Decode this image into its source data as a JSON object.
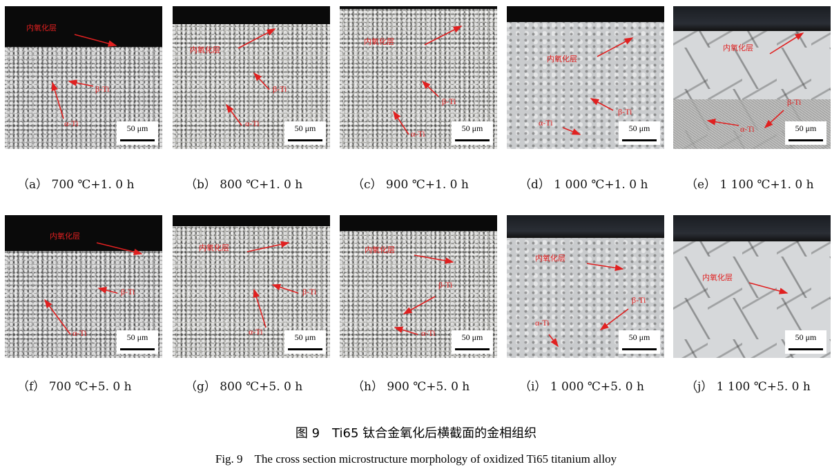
{
  "figure": {
    "title_cn": "图 9　Ti65 钛合金氧化后横截面的金相组织",
    "title_en": "Fig. 9　The cross section microstructure morphology of oxidized Ti65 titanium alloy",
    "annotation_color": "#e02020",
    "panels": [
      {
        "id": "a",
        "caption": "（a）  700 ℃+1. 0 h",
        "labels": {
          "oxide": "内氧化层",
          "beta": "β-Ti",
          "alpha": "α-Ti"
        },
        "scale": "50 μm"
      },
      {
        "id": "b",
        "caption": "（b）  800 ℃+1. 0 h",
        "labels": {
          "oxide": "内氧化层",
          "beta": "β-Ti",
          "alpha": "α-Ti"
        },
        "scale": "50 μm"
      },
      {
        "id": "c",
        "caption": "（c）  900 ℃+1. 0 h",
        "labels": {
          "oxide": "内氧化层",
          "beta": "β-Ti",
          "alpha": "α-Ti"
        },
        "scale": "50 μm"
      },
      {
        "id": "d",
        "caption": "（d）  1 000 ℃+1. 0 h",
        "labels": {
          "oxide": "内氧化层",
          "beta": "β-Ti",
          "alpha": "α-Ti"
        },
        "scale": "50 μm"
      },
      {
        "id": "e",
        "caption": "（e）  1 100 ℃+1. 0 h",
        "labels": {
          "oxide": "内氧化层",
          "beta": "β-Ti",
          "alpha": "α-Ti"
        },
        "scale": "50 μm"
      },
      {
        "id": "f",
        "caption": "（f）  700 ℃+5. 0 h",
        "labels": {
          "oxide": "内氧化层",
          "beta": "β-Ti",
          "alpha": "α-Ti"
        },
        "scale": "50 μm"
      },
      {
        "id": "g",
        "caption": "（g）  800 ℃+5. 0 h",
        "labels": {
          "oxide": "内氧化层",
          "beta": "β-Ti",
          "alpha": "α-Ti"
        },
        "scale": "50 μm"
      },
      {
        "id": "h",
        "caption": "（h）  900 ℃+5. 0 h",
        "labels": {
          "oxide": "内氧化层",
          "beta": "β-Ti",
          "alpha": "α-Ti"
        },
        "scale": "50 μm"
      },
      {
        "id": "i",
        "caption": "（i）  1 000 ℃+5. 0 h",
        "labels": {
          "oxide": "内氧化层",
          "beta": "β-Ti",
          "alpha": "α-Ti"
        },
        "scale": "50 μm"
      },
      {
        "id": "j",
        "caption": "（j）  1 100 ℃+5. 0 h",
        "labels": {
          "oxide": "内氧化层"
        },
        "scale": "50 μm"
      }
    ]
  }
}
